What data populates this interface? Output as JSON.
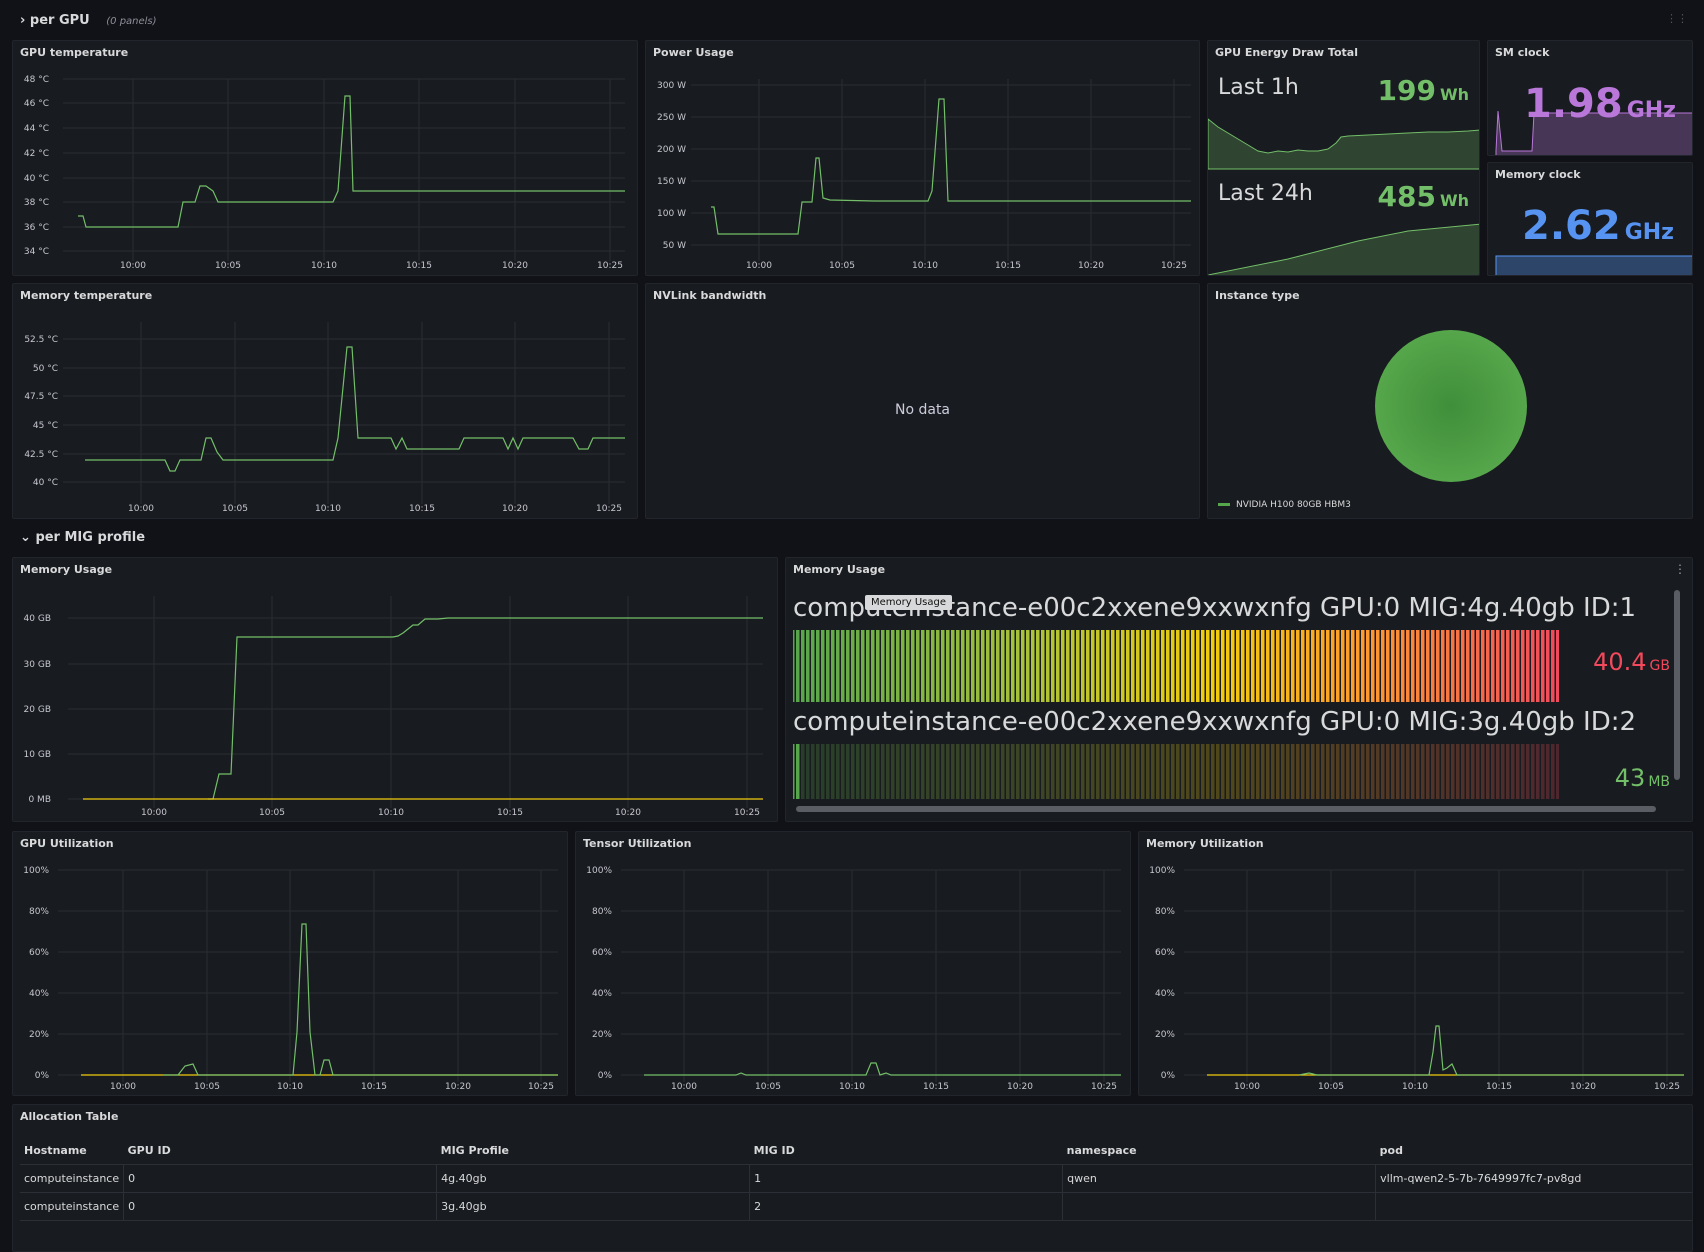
{
  "rows": {
    "per_gpu": {
      "title": "per GPU",
      "sub": "(0 panels)"
    },
    "per_mig": {
      "title": "per MIG profile"
    }
  },
  "time_ticks": [
    "10:00",
    "10:05",
    "10:10",
    "10:15",
    "10:20",
    "10:25"
  ],
  "colors": {
    "green": "#73bf69",
    "yellow": "#f2cc0c",
    "purple": "#b877d9",
    "blue": "#5794f2",
    "red": "#f2495c"
  },
  "panels": {
    "gpu_temp": {
      "title": "GPU temperature",
      "yticks": [
        "48 °C",
        "46 °C",
        "44 °C",
        "42 °C",
        "40 °C",
        "38 °C",
        "36 °C",
        "34 °C"
      ]
    },
    "power": {
      "title": "Power Usage",
      "yticks": [
        "300 W",
        "250 W",
        "200 W",
        "150 W",
        "100 W",
        "50 W"
      ]
    },
    "energy": {
      "title": "GPU Energy Draw Total",
      "last1h_label": "Last 1h",
      "last1h_value": "199",
      "last1h_unit": "Wh",
      "last24h_label": "Last 24h",
      "last24h_value": "485",
      "last24h_unit": "Wh"
    },
    "sm_clock": {
      "title": "SM clock",
      "value": "1.98",
      "unit": "GHz"
    },
    "mem_clock": {
      "title": "Memory clock",
      "value": "2.62",
      "unit": "GHz"
    },
    "mem_temp": {
      "title": "Memory temperature",
      "yticks": [
        "52.5 °C",
        "50 °C",
        "47.5 °C",
        "45 °C",
        "42.5 °C",
        "40 °C"
      ]
    },
    "nvlink": {
      "title": "NVLink bandwidth",
      "no_data": "No data"
    },
    "instance": {
      "title": "Instance type",
      "legend": "NVIDIA H100 80GB HBM3"
    },
    "mig_mem": {
      "title": "Memory Usage",
      "yticks": [
        "40 GB",
        "30 GB",
        "20 GB",
        "10 GB",
        "0 MB"
      ]
    },
    "mig_gauge": {
      "title": "Memory Usage",
      "tooltip": "Memory Usage",
      "bars": [
        {
          "name": "computeinstance-e00c2xxene9xxwxnfg GPU:0 MIG:4g.40gb ID:1",
          "value": "40.4",
          "unit": "GB",
          "fill": 1.0
        },
        {
          "name": "computeinstance-e00c2xxene9xxwxnfg GPU:0 MIG:3g.40gb ID:2",
          "value": "43",
          "unit": "MB",
          "fill": 0.01
        }
      ]
    },
    "gpu_util": {
      "title": "GPU Utilization"
    },
    "tensor_util": {
      "title": "Tensor Utilization"
    },
    "memory_util": {
      "title": "Memory Utilization"
    },
    "pct_ticks": [
      "100%",
      "80%",
      "60%",
      "40%",
      "20%",
      "0%"
    ],
    "alloc": {
      "title": "Allocation Table",
      "headers": [
        "Hostname",
        "GPU ID",
        "MIG Profile",
        "MIG ID",
        "namespace",
        "pod"
      ],
      "rows": [
        [
          "computeinstance",
          "0",
          "4g.40gb",
          "1",
          "qwen",
          "vllm-qwen2-5-7b-7649997fc7-pv8gd"
        ],
        [
          "computeinstance",
          "0",
          "3g.40gb",
          "2",
          "",
          ""
        ]
      ]
    }
  }
}
